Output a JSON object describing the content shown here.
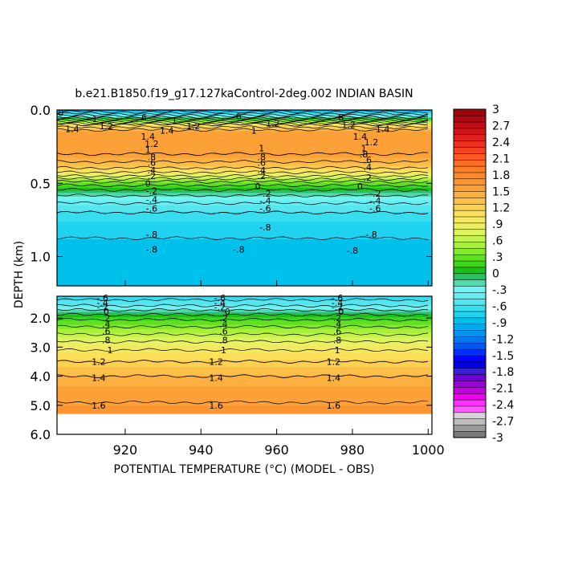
{
  "chart_data": {
    "type": "heatmap",
    "title": "b.e21.B1850.f19_g17.127kaControl-2deg.002 INDIAN BASIN",
    "xlabel": "POTENTIAL TEMPERATURE (°C) (MODEL - OBS)",
    "ylabel": "DEPTH (km)",
    "xlim": [
      902,
      1001
    ],
    "x_ticks": [
      "920",
      "940",
      "960",
      "980",
      "1000"
    ],
    "x_tick_values": [
      920,
      940,
      960,
      980,
      1000
    ],
    "upper_panel": {
      "ylim": [
        0.0,
        1.2
      ],
      "y_ticks": [
        "0.0",
        "0.5",
        "1.0"
      ],
      "y_tick_values": [
        0.0,
        0.5,
        1.0
      ],
      "profile": [
        {
          "depth": 0.0,
          "value": -1.0
        },
        {
          "depth": 0.05,
          "value": -0.2
        },
        {
          "depth": 0.1,
          "value": 1.0
        },
        {
          "depth": 0.15,
          "value": 1.55
        },
        {
          "depth": 0.3,
          "value": 1.6
        },
        {
          "depth": 0.38,
          "value": 1.3
        },
        {
          "depth": 0.44,
          "value": 0.9
        },
        {
          "depth": 0.5,
          "value": 0.3
        },
        {
          "depth": 0.56,
          "value": -0.1
        },
        {
          "depth": 0.62,
          "value": -0.35
        },
        {
          "depth": 0.7,
          "value": -0.6
        },
        {
          "depth": 0.8,
          "value": -0.75
        },
        {
          "depth": 0.95,
          "value": -0.85
        },
        {
          "depth": 1.2,
          "value": -0.85
        }
      ],
      "contour_labels": [
        {
          "text": "0",
          "x": 903,
          "depth": 0.02
        },
        {
          "text": "1",
          "x": 912,
          "depth": 0.06
        },
        {
          "text": "1.2",
          "x": 915,
          "depth": 0.11
        },
        {
          "text": "1.4",
          "x": 906,
          "depth": 0.13
        },
        {
          "text": "6",
          "x": 925,
          "depth": 0.05
        },
        {
          "text": "1.4",
          "x": 931,
          "depth": 0.14
        },
        {
          "text": "1.2",
          "x": 938,
          "depth": 0.11
        },
        {
          "text": "1",
          "x": 933,
          "depth": 0.07
        },
        {
          "text": "1.4",
          "x": 926,
          "depth": 0.18
        },
        {
          "text": "1.2",
          "x": 927,
          "depth": 0.23
        },
        {
          "text": "1",
          "x": 926,
          "depth": 0.27
        },
        {
          "text": ".8",
          "x": 927,
          "depth": 0.32
        },
        {
          "text": ".6",
          "x": 927,
          "depth": 0.36
        },
        {
          "text": ".4",
          "x": 927,
          "depth": 0.41
        },
        {
          "text": ".2",
          "x": 927,
          "depth": 0.45
        },
        {
          "text": "0",
          "x": 926,
          "depth": 0.5
        },
        {
          "text": "-.2",
          "x": 927,
          "depth": 0.55
        },
        {
          "text": "-.4",
          "x": 927,
          "depth": 0.61
        },
        {
          "text": "-.6",
          "x": 927,
          "depth": 0.67
        },
        {
          "text": "-.8",
          "x": 927,
          "depth": 0.85
        },
        {
          "text": "-.8",
          "x": 927,
          "depth": 0.95
        },
        {
          "text": "6",
          "x": 950,
          "depth": 0.04
        },
        {
          "text": "1",
          "x": 954,
          "depth": 0.14
        },
        {
          "text": "1.2",
          "x": 959,
          "depth": 0.09
        },
        {
          "text": "1",
          "x": 956,
          "depth": 0.26
        },
        {
          "text": ".8",
          "x": 956,
          "depth": 0.32
        },
        {
          "text": ".6",
          "x": 956,
          "depth": 0.36
        },
        {
          "text": ".4",
          "x": 956,
          "depth": 0.41
        },
        {
          "text": ".2",
          "x": 956,
          "depth": 0.45
        },
        {
          "text": "0",
          "x": 955,
          "depth": 0.52
        },
        {
          "text": "-.2",
          "x": 957,
          "depth": 0.57
        },
        {
          "text": "-.4",
          "x": 957,
          "depth": 0.62
        },
        {
          "text": "-.6",
          "x": 957,
          "depth": 0.67
        },
        {
          "text": "-.8",
          "x": 957,
          "depth": 0.8
        },
        {
          "text": "-.8",
          "x": 950,
          "depth": 0.95
        },
        {
          "text": "8",
          "x": 977,
          "depth": 0.05
        },
        {
          "text": "1.2",
          "x": 979,
          "depth": 0.1
        },
        {
          "text": "1.4",
          "x": 988,
          "depth": 0.13
        },
        {
          "text": "1.4",
          "x": 982,
          "depth": 0.18
        },
        {
          "text": "1.2",
          "x": 985,
          "depth": 0.22
        },
        {
          "text": "1",
          "x": 983,
          "depth": 0.26
        },
        {
          "text": ".8",
          "x": 983,
          "depth": 0.3
        },
        {
          "text": ".6",
          "x": 984,
          "depth": 0.34
        },
        {
          "text": ".4",
          "x": 984,
          "depth": 0.39
        },
        {
          "text": ".2",
          "x": 984,
          "depth": 0.46
        },
        {
          "text": "0",
          "x": 982,
          "depth": 0.52
        },
        {
          "text": "-.2",
          "x": 986,
          "depth": 0.57
        },
        {
          "text": "-.4",
          "x": 986,
          "depth": 0.62
        },
        {
          "text": "-.6",
          "x": 986,
          "depth": 0.67
        },
        {
          "text": "-.8",
          "x": 985,
          "depth": 0.85
        },
        {
          "text": "-.8",
          "x": 980,
          "depth": 0.96
        }
      ]
    },
    "lower_panel": {
      "ylim": [
        1.25,
        6.0
      ],
      "y_ticks": [
        "2.0",
        "3.0",
        "4.0",
        "5.0",
        "6.0"
      ],
      "y_tick_values": [
        2.0,
        3.0,
        4.0,
        5.0,
        6.0
      ],
      "data_bottom_depth": 5.3,
      "profile": [
        {
          "depth": 1.25,
          "value": -0.7
        },
        {
          "depth": 1.5,
          "value": -0.5
        },
        {
          "depth": 1.8,
          "value": -0.1
        },
        {
          "depth": 2.1,
          "value": 0.25
        },
        {
          "depth": 2.5,
          "value": 0.55
        },
        {
          "depth": 3.0,
          "value": 0.95
        },
        {
          "depth": 3.5,
          "value": 1.2
        },
        {
          "depth": 4.0,
          "value": 1.4
        },
        {
          "depth": 4.5,
          "value": 1.55
        },
        {
          "depth": 5.3,
          "value": 1.65
        }
      ],
      "contour_labels": [
        {
          "text": "-.6",
          "x": 914,
          "depth": 1.3
        },
        {
          "text": "-.4",
          "x": 914,
          "depth": 1.47
        },
        {
          "text": "-.2",
          "x": 914,
          "depth": 1.62
        },
        {
          "text": "0",
          "x": 915,
          "depth": 1.78
        },
        {
          "text": ".2",
          "x": 915,
          "depth": 2.0
        },
        {
          "text": ".4",
          "x": 915,
          "depth": 2.2
        },
        {
          "text": ".6",
          "x": 915,
          "depth": 2.45
        },
        {
          "text": ".8",
          "x": 915,
          "depth": 2.75
        },
        {
          "text": "1",
          "x": 916,
          "depth": 3.1
        },
        {
          "text": "1.2",
          "x": 913,
          "depth": 3.5
        },
        {
          "text": "1.4",
          "x": 913,
          "depth": 4.05
        },
        {
          "text": "1.6",
          "x": 913,
          "depth": 5.0
        },
        {
          "text": "-.6",
          "x": 945,
          "depth": 1.3
        },
        {
          "text": "-.4",
          "x": 945,
          "depth": 1.47
        },
        {
          "text": "-.2",
          "x": 945,
          "depth": 1.62
        },
        {
          "text": "0",
          "x": 947,
          "depth": 1.78
        },
        {
          "text": ".2",
          "x": 946,
          "depth": 2.0
        },
        {
          "text": ".4",
          "x": 946,
          "depth": 2.2
        },
        {
          "text": ".6",
          "x": 946,
          "depth": 2.45
        },
        {
          "text": ".8",
          "x": 946,
          "depth": 2.75
        },
        {
          "text": "1",
          "x": 946,
          "depth": 3.1
        },
        {
          "text": "1.2",
          "x": 944,
          "depth": 3.5
        },
        {
          "text": "1.4",
          "x": 944,
          "depth": 4.05
        },
        {
          "text": "1.6",
          "x": 944,
          "depth": 5.0
        },
        {
          "text": "-.6",
          "x": 976,
          "depth": 1.3
        },
        {
          "text": "-.4",
          "x": 976,
          "depth": 1.47
        },
        {
          "text": "-.2",
          "x": 976,
          "depth": 1.62
        },
        {
          "text": "0",
          "x": 977,
          "depth": 1.78
        },
        {
          "text": ".2",
          "x": 976,
          "depth": 2.0
        },
        {
          "text": ".4",
          "x": 976,
          "depth": 2.2
        },
        {
          "text": ".6",
          "x": 976,
          "depth": 2.45
        },
        {
          "text": ".8",
          "x": 976,
          "depth": 2.75
        },
        {
          "text": "1",
          "x": 976,
          "depth": 3.1
        },
        {
          "text": "1.2",
          "x": 975,
          "depth": 3.5
        },
        {
          "text": "1.4",
          "x": 975,
          "depth": 4.05
        },
        {
          "text": "1.6",
          "x": 975,
          "depth": 5.0
        }
      ]
    },
    "contour_levels": [
      -0.8,
      -0.6,
      -0.4,
      -0.2,
      0,
      0.2,
      0.4,
      0.6,
      0.8,
      1,
      1.2,
      1.4,
      1.6
    ],
    "colorbar": {
      "labels": [
        "3",
        "2.7",
        "2.4",
        "2.1",
        "1.8",
        "1.5",
        "1.2",
        ".9",
        ".6",
        ".3",
        "0",
        "-.3",
        "-.6",
        "-.9",
        "-1.2",
        "-1.5",
        "-1.8",
        "-2.1",
        "-2.4",
        "-2.7",
        "-3"
      ],
      "range": [
        -3,
        3
      ],
      "colors": [
        "#7a7a7a",
        "#9a9a9a",
        "#bdbdbd",
        "#d4d4d4",
        "#ff5cff",
        "#ff33ff",
        "#f000f0",
        "#c000e0",
        "#9a00d8",
        "#6e00d8",
        "#3b1fd8",
        "#0000e0",
        "#0000ff",
        "#0030ff",
        "#0058f0",
        "#0078f0",
        "#0094f0",
        "#00aaf0",
        "#00c0ec",
        "#1ed2f0",
        "#38def0",
        "#55e6f0",
        "#68ecf0",
        "#72f4f4",
        "#52d8b0",
        "#28c060",
        "#1cc018",
        "#3cd61c",
        "#60e020",
        "#86ea28",
        "#a8f03a",
        "#c4f44c",
        "#dcf45a",
        "#ecf064",
        "#f4e860",
        "#fce05a",
        "#fcd050",
        "#fcc048",
        "#fcb040",
        "#fca038",
        "#fc9430",
        "#fc8a2c",
        "#fc7e28",
        "#fc6e24",
        "#fc5a20",
        "#f4441e",
        "#ec321c",
        "#e0201a",
        "#d01418",
        "#c00c14",
        "#ae0810",
        "#9c040c"
      ]
    }
  }
}
